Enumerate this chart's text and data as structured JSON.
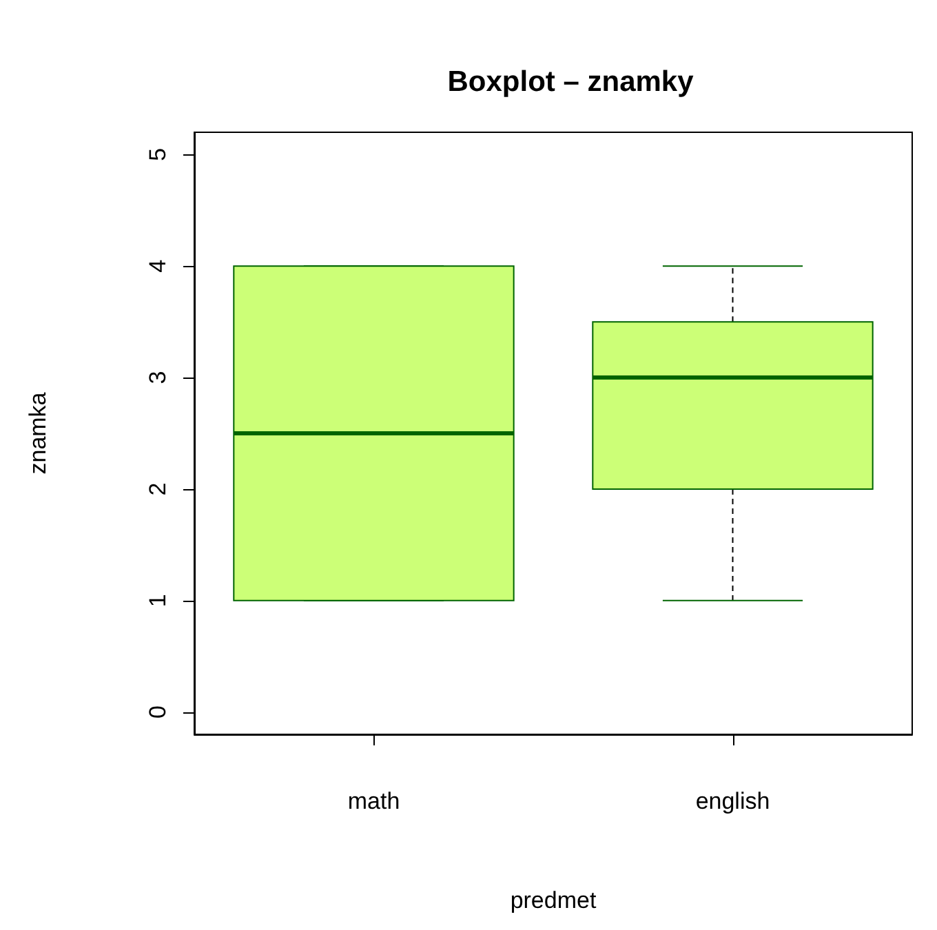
{
  "chart_data": {
    "type": "box",
    "title": "Boxplot – znamky",
    "xlabel": "predmet",
    "ylabel": "znamka",
    "categories": [
      "math",
      "english"
    ],
    "series": [
      {
        "color": "#ccff77",
        "boxes": [
          {
            "low": 1,
            "q1": 1,
            "median": 2.5,
            "q3": 4,
            "high": 4
          },
          {
            "low": 1,
            "q1": 2,
            "median": 3,
            "q3": 3.5,
            "high": 4
          }
        ]
      }
    ],
    "ylim": [
      -0.2,
      5.2
    ],
    "yticks": [
      0,
      1,
      2,
      3,
      4,
      5
    ],
    "grid": false
  }
}
